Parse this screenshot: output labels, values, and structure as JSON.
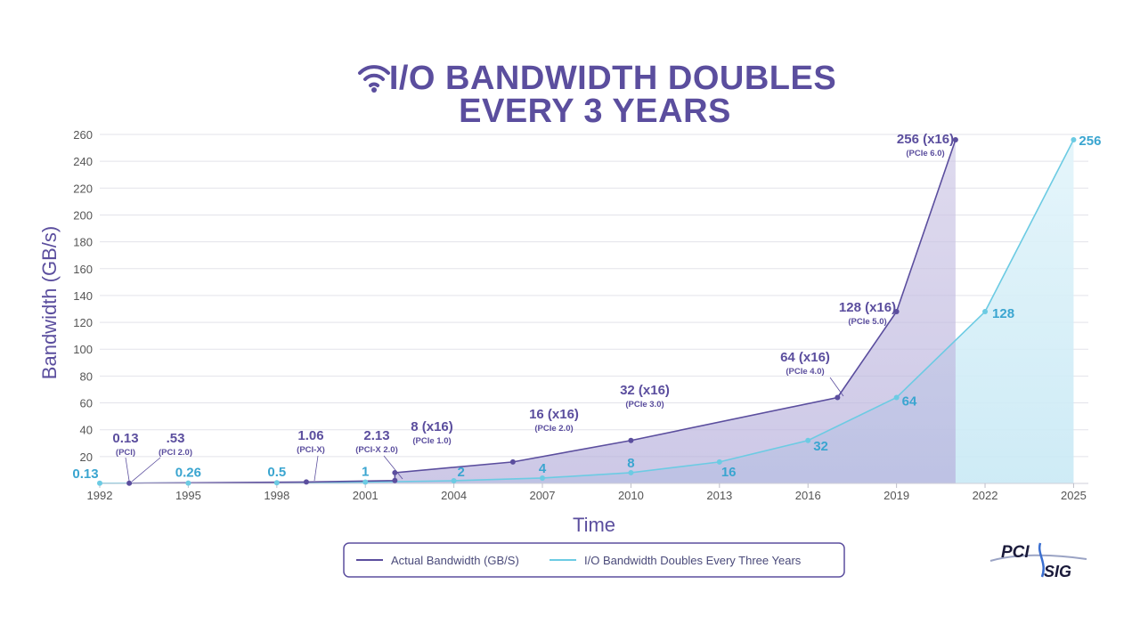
{
  "colors": {
    "title": "#5b4e9e",
    "actual": "#5b4e9e",
    "trend": "#6ccbe3",
    "trend_text": "#3aa5d0",
    "actual_fill": "#bfb8dc",
    "trend_fill": "#d5eef7",
    "grid": "#e3e3ea"
  },
  "chart_data": {
    "type": "line",
    "title_lines": [
      "I/O BANDWIDTH DOUBLES",
      "EVERY 3 YEARS"
    ],
    "xlabel": "Time",
    "ylabel": "Bandwidth (GB/s)",
    "x_ticks": [
      1992,
      1995,
      1998,
      2001,
      2004,
      2007,
      2010,
      2013,
      2016,
      2019,
      2022,
      2025
    ],
    "y_ticks": [
      20,
      40,
      60,
      80,
      100,
      120,
      140,
      160,
      180,
      200,
      220,
      240,
      260
    ],
    "xlim": [
      1992,
      2025.5
    ],
    "ylim": [
      0,
      260
    ],
    "series": [
      {
        "name": "Actual Bandwidth (GB/S)",
        "key": "actual",
        "points": [
          {
            "x": 1993,
            "y": 0.13,
            "label": "0.13",
            "sub": "(PCI)"
          },
          {
            "x": 1999,
            "y": 1.06,
            "label": "1.06",
            "sub": "(PCI-X)"
          },
          {
            "x": 2002,
            "y": 2.13,
            "label": "2.13",
            "sub": "(PCI-X 2.0)"
          },
          {
            "x": 2002,
            "y": 8,
            "label": "8 (x16)",
            "sub": "(PCIe 1.0)"
          },
          {
            "x": 2006,
            "y": 16,
            "label": "16 (x16)",
            "sub": "(PCIe 2.0)"
          },
          {
            "x": 2010,
            "y": 32,
            "label": "32 (x16)",
            "sub": "(PCIe 3.0)"
          },
          {
            "x": 2017,
            "y": 64,
            "label": "64 (x16)",
            "sub": "(PCIe 4.0)"
          },
          {
            "x": 2019,
            "y": 128,
            "label": "128 (x16)",
            "sub": "(PCIe 5.0)"
          },
          {
            "x": 2021,
            "y": 256,
            "label": "256 (x16)",
            "sub": "(PCIe 6.0)"
          }
        ],
        "extra_annotation": {
          "label": ".53",
          "sub": "(PCI 2.0)"
        }
      },
      {
        "name": "I/O Bandwidth Doubles Every Three Years",
        "key": "trend",
        "points": [
          {
            "x": 1992,
            "y": 0.13,
            "label": "0.13"
          },
          {
            "x": 1995,
            "y": 0.26,
            "label": "0.26"
          },
          {
            "x": 1998,
            "y": 0.5,
            "label": "0.5"
          },
          {
            "x": 2001,
            "y": 1,
            "label": "1"
          },
          {
            "x": 2004,
            "y": 2,
            "label": "2"
          },
          {
            "x": 2007,
            "y": 4,
            "label": "4"
          },
          {
            "x": 2010,
            "y": 8,
            "label": "8"
          },
          {
            "x": 2013,
            "y": 16,
            "label": "16"
          },
          {
            "x": 2016,
            "y": 32,
            "label": "32"
          },
          {
            "x": 2019,
            "y": 64,
            "label": "64"
          },
          {
            "x": 2022,
            "y": 128,
            "label": "128"
          },
          {
            "x": 2025,
            "y": 256,
            "label": "256"
          }
        ]
      }
    ],
    "legend_position": "bottom-center"
  },
  "logo": {
    "line1": "PCI",
    "line2": "SIG"
  }
}
